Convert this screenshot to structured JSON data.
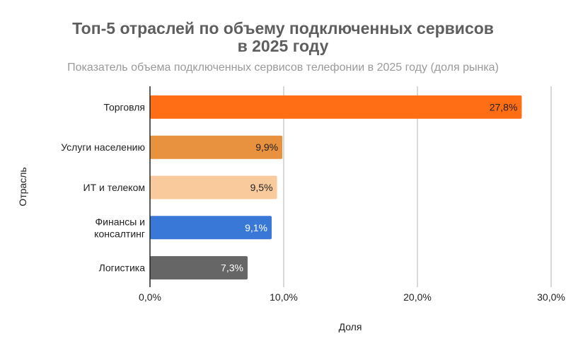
{
  "chart_data": {
    "type": "bar",
    "orientation": "horizontal",
    "title": "Топ-5 отраслей по объему подключенных сервисов в 2025 году",
    "title_lines": [
      "Топ-5 отраслей по объему подключенных сервисов",
      "в 2025 году"
    ],
    "subtitle": "Показатель объема подключенных сервисов телефонии в 2025 году (доля рынка)",
    "xlabel": "Доля",
    "ylabel": "Отрасль",
    "xlim": [
      0,
      30
    ],
    "xticks": [
      0,
      10,
      20,
      30
    ],
    "xtick_labels": [
      "0,0%",
      "10,0%",
      "20,0%",
      "30,0%"
    ],
    "grid": true,
    "categories": [
      "Торговля",
      "Услуги населению",
      "ИТ и телеком",
      "Финансы и консалтинг",
      "Логистика"
    ],
    "category_lines": [
      [
        "Торговля"
      ],
      [
        "Услуги населению"
      ],
      [
        "ИТ и телеком"
      ],
      [
        "Финансы и",
        "консалтинг"
      ],
      [
        "Логистика"
      ]
    ],
    "values": [
      27.8,
      9.9,
      9.5,
      9.1,
      7.3
    ],
    "data_labels": [
      "27,8%",
      "9,9%",
      "9,5%",
      "9,1%",
      "7,3%"
    ],
    "colors": [
      "#ff6d15",
      "#e8913f",
      "#f9cb9c",
      "#3a78d8",
      "#666666"
    ],
    "label_colors": [
      "#222222",
      "#222222",
      "#222222",
      "#ffffff",
      "#ffffff"
    ]
  }
}
